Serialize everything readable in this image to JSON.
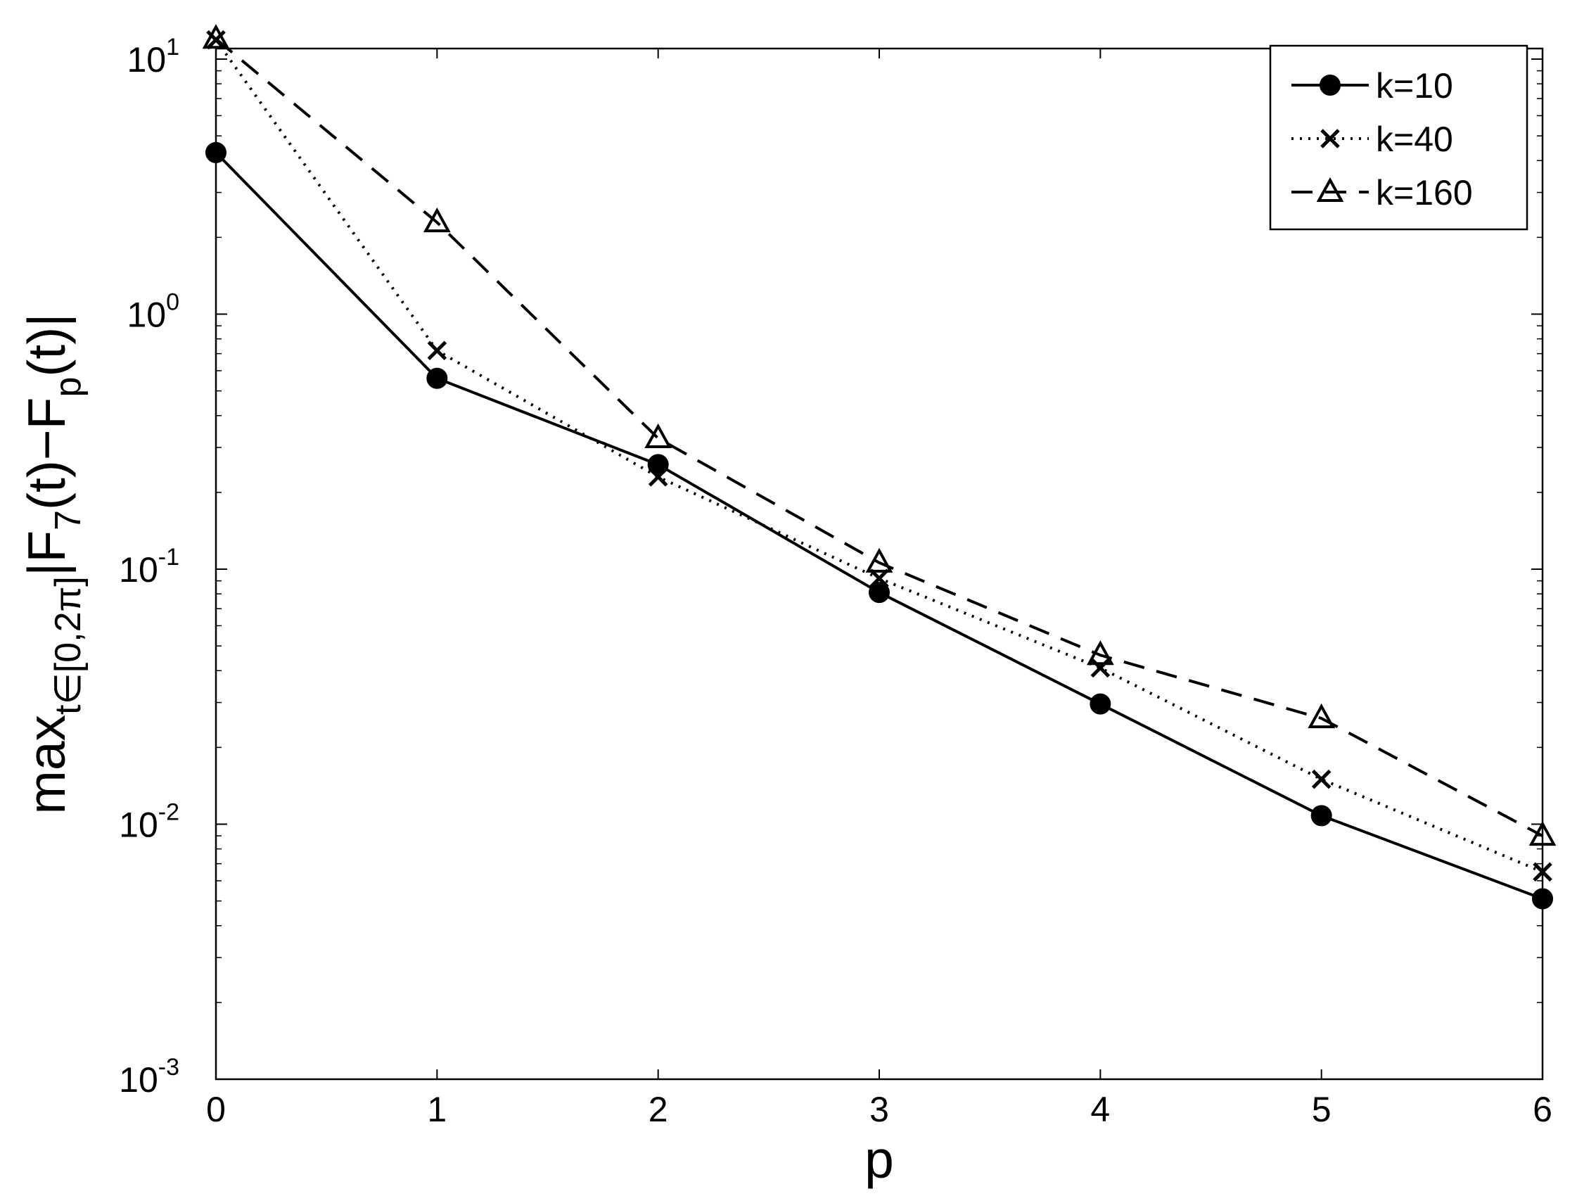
{
  "chart_data": {
    "type": "line",
    "xlabel": "p",
    "ylabel": "max_{t∈[0,2π]}|F_7(t)−F_p(t)|",
    "x": [
      0,
      1,
      2,
      3,
      4,
      5,
      6
    ],
    "xlim": [
      0,
      6
    ],
    "xticks": [
      0,
      1,
      2,
      3,
      4,
      5,
      6
    ],
    "ylim": [
      0.001,
      11
    ],
    "yscale": "log",
    "yticks": [
      {
        "value": 0.001,
        "label": "10^-3"
      },
      {
        "value": 0.01,
        "label": "10^-2"
      },
      {
        "value": 0.1,
        "label": "10^-1"
      },
      {
        "value": 1,
        "label": "10^0"
      },
      {
        "value": 10,
        "label": "10^1"
      }
    ],
    "legend": "northeast",
    "series": [
      {
        "name": "k=10",
        "color": "#000000",
        "linestyle": "solid",
        "marker": "circle",
        "values": [
          4.3,
          0.56,
          0.257,
          0.081,
          0.0296,
          0.0108,
          0.0051
        ]
      },
      {
        "name": "k=40",
        "color": "#000000",
        "linestyle": "dotted",
        "marker": "x",
        "values": [
          11.9,
          0.72,
          0.23,
          0.092,
          0.041,
          0.015,
          0.0065
        ]
      },
      {
        "name": "k=160",
        "color": "#000000",
        "linestyle": "dashed",
        "marker": "triangle",
        "values": [
          12,
          2.29,
          0.326,
          0.106,
          0.046,
          0.026,
          0.009
        ]
      }
    ]
  }
}
